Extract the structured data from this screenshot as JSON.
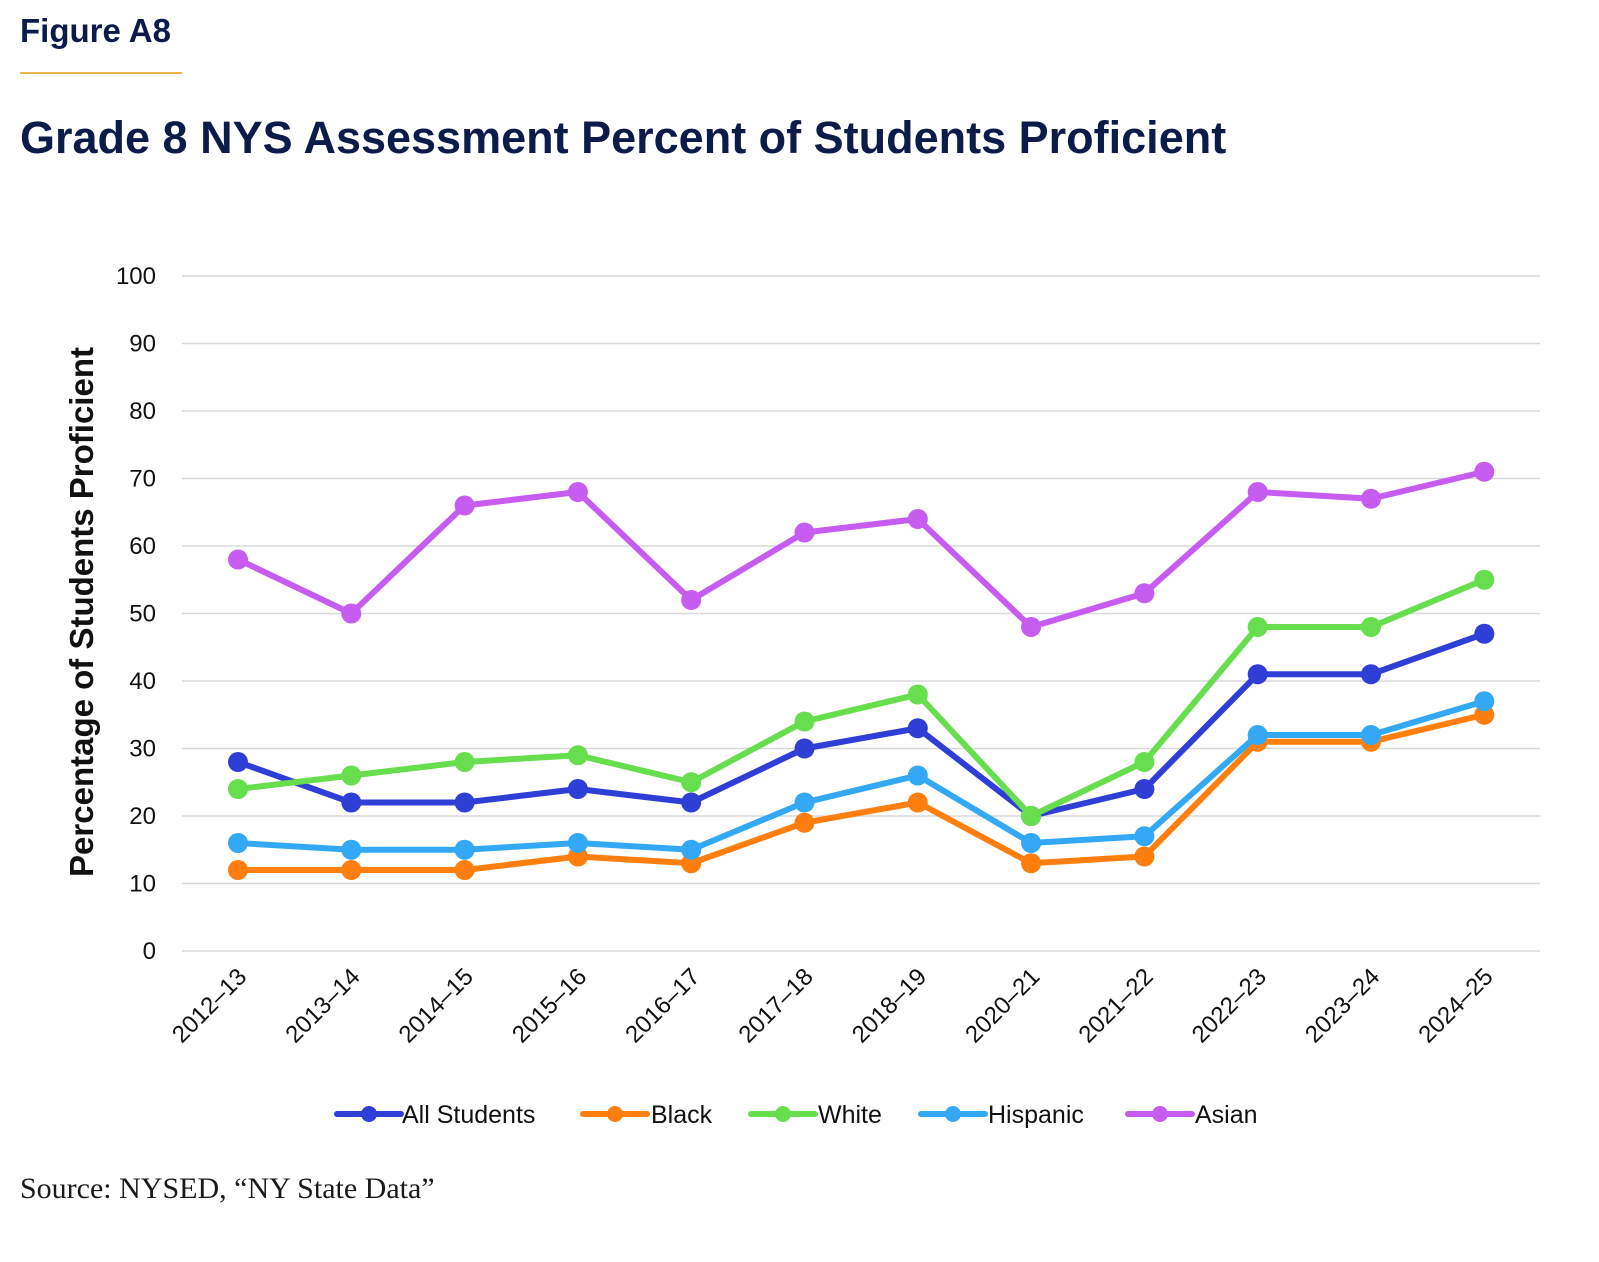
{
  "figure_label": "Figure A8",
  "title": "Grade 8 NYS Assessment Percent of Students Proficient",
  "source": "Source: NYSED, “NY State Data”",
  "colors": {
    "title": "#0d1b4a",
    "rule": "#f0b44c",
    "grid": "#d9d9d9"
  },
  "chart_data": {
    "type": "line",
    "title": "Grade 8 NYS Assessment Percent of Students Proficient",
    "xlabel": "",
    "ylabel": "Percentage of Students Proficient",
    "ylim": [
      0,
      100
    ],
    "yticks": [
      0,
      10,
      20,
      30,
      40,
      50,
      60,
      70,
      80,
      90,
      100
    ],
    "grid": true,
    "legend_position": "bottom",
    "categories": [
      "2012–13",
      "2013–14",
      "2014–15",
      "2015–16",
      "2016–17",
      "2017–18",
      "2018–19",
      "2020–21",
      "2021–22",
      "2022–23",
      "2023–24",
      "2024–25"
    ],
    "series": [
      {
        "name": "All Students",
        "color": "#2f3fd6",
        "values": [
          28,
          22,
          22,
          24,
          22,
          30,
          33,
          20,
          24,
          41,
          41,
          47
        ]
      },
      {
        "name": "Black",
        "color": "#ff7f0e",
        "values": [
          12,
          12,
          12,
          14,
          13,
          19,
          22,
          13,
          14,
          31,
          31,
          35
        ]
      },
      {
        "name": "White",
        "color": "#66de4d",
        "values": [
          24,
          26,
          28,
          29,
          25,
          34,
          38,
          20,
          28,
          48,
          48,
          55
        ]
      },
      {
        "name": "Hispanic",
        "color": "#33a9f5",
        "values": [
          16,
          15,
          15,
          16,
          15,
          22,
          26,
          16,
          17,
          32,
          32,
          37
        ]
      },
      {
        "name": "Asian",
        "color": "#c75cf0",
        "values": [
          58,
          50,
          66,
          68,
          52,
          62,
          64,
          48,
          53,
          68,
          67,
          71
        ]
      }
    ]
  }
}
